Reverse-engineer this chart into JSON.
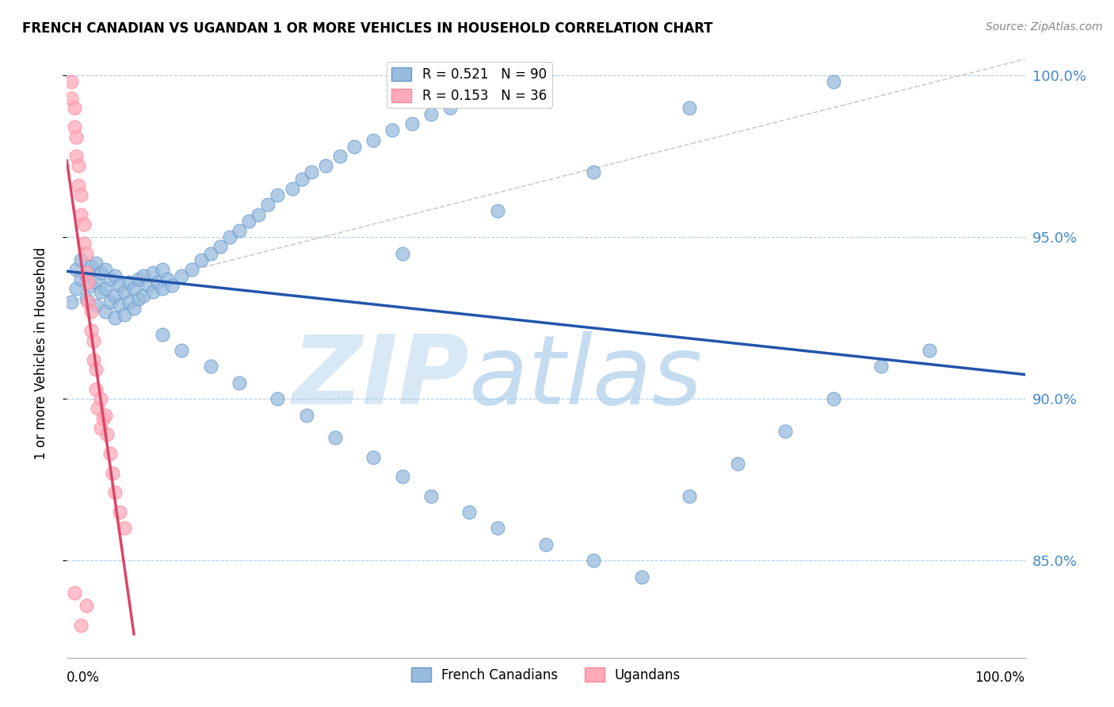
{
  "title": "FRENCH CANADIAN VS UGANDAN 1 OR MORE VEHICLES IN HOUSEHOLD CORRELATION CHART",
  "source": "Source: ZipAtlas.com",
  "ylabel": "1 or more Vehicles in Household",
  "legend_blue": {
    "R": 0.521,
    "N": 90,
    "label": "French Canadians"
  },
  "legend_pink": {
    "R": 0.153,
    "N": 36,
    "label": "Ugandans"
  },
  "xmin": 0.0,
  "xmax": 1.0,
  "ymin": 0.82,
  "ymax": 1.008,
  "yticks": [
    0.85,
    0.9,
    0.95,
    1.0
  ],
  "ytick_labels": [
    "85.0%",
    "90.0%",
    "95.0%",
    "100.0%"
  ],
  "blue_color": "#99BBDD",
  "blue_edge": "#6699CC",
  "pink_color": "#FFAABB",
  "pink_edge": "#FF8899",
  "blue_line_color": "#2255AA",
  "pink_line_color": "#DD4466",
  "grid_color": "#AACCEE",
  "ref_line_color": "#CCCCCC",
  "blue_scatter_x": [
    0.005,
    0.01,
    0.01,
    0.015,
    0.015,
    0.02,
    0.02,
    0.025,
    0.025,
    0.03,
    0.03,
    0.03,
    0.035,
    0.035,
    0.04,
    0.04,
    0.04,
    0.045,
    0.045,
    0.05,
    0.05,
    0.05,
    0.055,
    0.055,
    0.06,
    0.06,
    0.065,
    0.065,
    0.07,
    0.07,
    0.075,
    0.075,
    0.08,
    0.08,
    0.085,
    0.09,
    0.09,
    0.095,
    0.1,
    0.1,
    0.105,
    0.11,
    0.12,
    0.13,
    0.14,
    0.15,
    0.16,
    0.17,
    0.18,
    0.19,
    0.2,
    0.21,
    0.22,
    0.235,
    0.245,
    0.255,
    0.27,
    0.285,
    0.3,
    0.32,
    0.34,
    0.36,
    0.38,
    0.4,
    0.1,
    0.12,
    0.15,
    0.18,
    0.22,
    0.25,
    0.28,
    0.32,
    0.35,
    0.38,
    0.42,
    0.45,
    0.5,
    0.55,
    0.6,
    0.65,
    0.7,
    0.75,
    0.8,
    0.85,
    0.9,
    0.65,
    0.8,
    0.55,
    0.45,
    0.35
  ],
  "blue_scatter_y": [
    0.93,
    0.934,
    0.94,
    0.937,
    0.943,
    0.931,
    0.938,
    0.935,
    0.941,
    0.929,
    0.936,
    0.942,
    0.933,
    0.939,
    0.927,
    0.934,
    0.94,
    0.93,
    0.937,
    0.925,
    0.932,
    0.938,
    0.929,
    0.935,
    0.926,
    0.933,
    0.93,
    0.936,
    0.928,
    0.934,
    0.931,
    0.937,
    0.932,
    0.938,
    0.935,
    0.933,
    0.939,
    0.936,
    0.934,
    0.94,
    0.937,
    0.935,
    0.938,
    0.94,
    0.943,
    0.945,
    0.947,
    0.95,
    0.952,
    0.955,
    0.957,
    0.96,
    0.963,
    0.965,
    0.968,
    0.97,
    0.972,
    0.975,
    0.978,
    0.98,
    0.983,
    0.985,
    0.988,
    0.99,
    0.92,
    0.915,
    0.91,
    0.905,
    0.9,
    0.895,
    0.888,
    0.882,
    0.876,
    0.87,
    0.865,
    0.86,
    0.855,
    0.85,
    0.845,
    0.87,
    0.88,
    0.89,
    0.9,
    0.91,
    0.915,
    0.99,
    0.998,
    0.97,
    0.958,
    0.945
  ],
  "pink_scatter_x": [
    0.005,
    0.005,
    0.008,
    0.008,
    0.01,
    0.01,
    0.012,
    0.012,
    0.015,
    0.015,
    0.018,
    0.018,
    0.02,
    0.02,
    0.022,
    0.022,
    0.025,
    0.025,
    0.028,
    0.028,
    0.03,
    0.03,
    0.032,
    0.035,
    0.035,
    0.038,
    0.04,
    0.042,
    0.045,
    0.048,
    0.05,
    0.055,
    0.06,
    0.008,
    0.015,
    0.02
  ],
  "pink_scatter_y": [
    0.998,
    0.993,
    0.99,
    0.984,
    0.981,
    0.975,
    0.972,
    0.966,
    0.963,
    0.957,
    0.954,
    0.948,
    0.945,
    0.939,
    0.936,
    0.93,
    0.927,
    0.921,
    0.918,
    0.912,
    0.909,
    0.903,
    0.897,
    0.891,
    0.9,
    0.894,
    0.895,
    0.889,
    0.883,
    0.877,
    0.871,
    0.865,
    0.86,
    0.84,
    0.83,
    0.836
  ]
}
